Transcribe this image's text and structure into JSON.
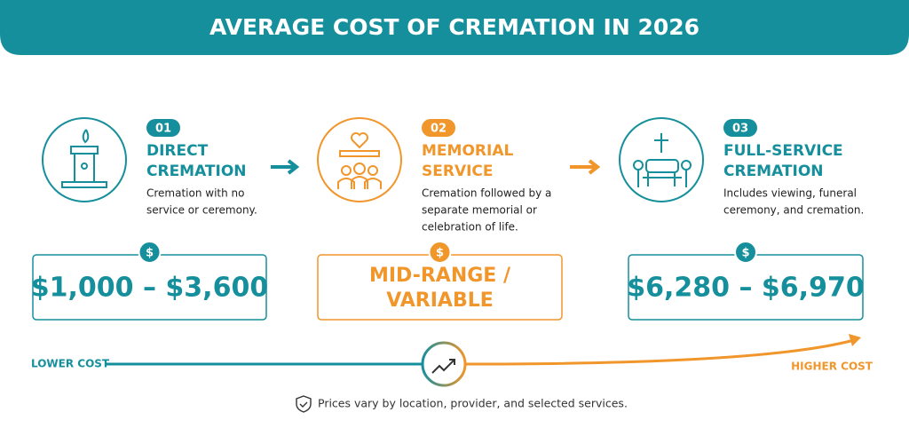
{
  "header": {
    "title": "AVERAGE COST OF CREMATION IN 2026"
  },
  "steps": [
    {
      "number": "01",
      "title_lines": [
        "DIRECT",
        "CREMATION"
      ],
      "description_lines": [
        "Cremation with no",
        "service or ceremony."
      ],
      "cost_icon": "$",
      "cost_lines": [
        "$1,000 – $3,600"
      ]
    },
    {
      "number": "02",
      "title_lines": [
        "MEMORIAL",
        "SERVICE"
      ],
      "description_lines": [
        "Cremation followed by a",
        "separate memorial or",
        "celebration of life."
      ],
      "cost_icon": "$",
      "cost_lines": [
        "MID-RANGE /",
        "VARIABLE"
      ]
    },
    {
      "number": "03",
      "title_lines": [
        "FULL-SERVICE",
        "CREMATION"
      ],
      "description_lines": [
        "Includes viewing, funeral",
        "ceremony, and cremation."
      ],
      "cost_icon": "$",
      "cost_lines": [
        "$6,280 – $6,970"
      ]
    }
  ],
  "scale": {
    "low_label": "LOWER COST",
    "high_label": "HIGHER COST"
  },
  "footnote": "Prices vary by location, provider, and selected services."
}
